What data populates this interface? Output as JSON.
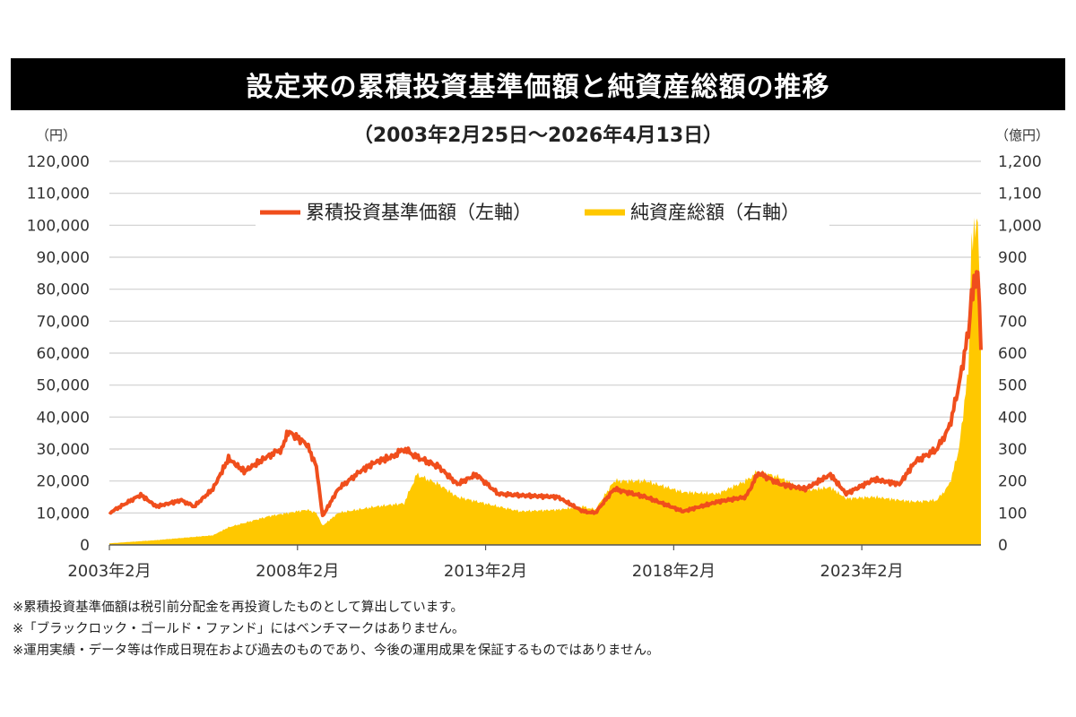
{
  "chart_data": {
    "type": "line+area",
    "title": "設定来の累積投資基準価額と純資産総額の推移",
    "subtitle": "（2003年2月25日～2026年4月13日）",
    "y_left": {
      "unit": "（円）",
      "range": [
        0,
        120000
      ],
      "ticks": [
        "0",
        "10,000",
        "20,000",
        "30,000",
        "40,000",
        "50,000",
        "60,000",
        "70,000",
        "80,000",
        "90,000",
        "100,000",
        "110,000",
        "120,000"
      ]
    },
    "y_right": {
      "unit": "（億円）",
      "range": [
        0,
        1200
      ],
      "ticks": [
        "0",
        "100",
        "200",
        "300",
        "400",
        "500",
        "600",
        "700",
        "800",
        "900",
        "1,000",
        "1,100",
        "1,200"
      ]
    },
    "x_range": [
      "2003-02",
      "2026-04"
    ],
    "x_ticks": [
      {
        "date": "2003-02",
        "label": "2003年2月"
      },
      {
        "date": "2008-02",
        "label": "2008年2月"
      },
      {
        "date": "2013-02",
        "label": "2013年2月"
      },
      {
        "date": "2018-02",
        "label": "2018年2月"
      },
      {
        "date": "2023-02",
        "label": "2023年2月"
      }
    ],
    "grid": true,
    "legend_placement": "top-center",
    "series": [
      {
        "name": "累積投資基準価額（左軸）",
        "type": "line",
        "axis": "left",
        "color": "#f04e1c",
        "points": [
          [
            "2003-02",
            10000
          ],
          [
            "2003-12",
            15700
          ],
          [
            "2004-05",
            12000
          ],
          [
            "2005-01",
            14000
          ],
          [
            "2005-05",
            12000
          ],
          [
            "2005-11",
            17500
          ],
          [
            "2006-04",
            27000
          ],
          [
            "2006-09",
            23000
          ],
          [
            "2007-05",
            28000
          ],
          [
            "2007-09",
            30000
          ],
          [
            "2007-11",
            35500
          ],
          [
            "2008-05",
            31500
          ],
          [
            "2008-08",
            24500
          ],
          [
            "2008-10",
            9000
          ],
          [
            "2009-03",
            17500
          ],
          [
            "2009-10",
            23000
          ],
          [
            "2010-03",
            26000
          ],
          [
            "2010-08",
            27500
          ],
          [
            "2010-12",
            30000
          ],
          [
            "2011-04",
            27500
          ],
          [
            "2011-11",
            24500
          ],
          [
            "2012-05",
            19000
          ],
          [
            "2012-11",
            22000
          ],
          [
            "2013-06",
            16000
          ],
          [
            "2014-01",
            15500
          ],
          [
            "2015-01",
            15000
          ],
          [
            "2015-09",
            10500
          ],
          [
            "2016-01",
            10000
          ],
          [
            "2016-07",
            17500
          ],
          [
            "2017-05",
            15000
          ],
          [
            "2018-05",
            10500
          ],
          [
            "2019-04",
            13500
          ],
          [
            "2020-01",
            15000
          ],
          [
            "2020-05",
            22500
          ],
          [
            "2020-12",
            19000
          ],
          [
            "2021-08",
            17500
          ],
          [
            "2022-04",
            22000
          ],
          [
            "2022-09",
            16000
          ],
          [
            "2023-06",
            20500
          ],
          [
            "2024-02",
            19000
          ],
          [
            "2024-07",
            26000
          ],
          [
            "2025-02",
            30000
          ],
          [
            "2025-06",
            37000
          ],
          [
            "2025-09",
            50000
          ],
          [
            "2025-12",
            66700
          ],
          [
            "2026-01",
            78000
          ],
          [
            "2026-03",
            86000
          ],
          [
            "2026-04",
            61000
          ]
        ]
      },
      {
        "name": "純資産総額（右軸）",
        "type": "area",
        "axis": "right",
        "color": "#ffc800",
        "points": [
          [
            "2003-02",
            5
          ],
          [
            "2004-05",
            15
          ],
          [
            "2005-11",
            30
          ],
          [
            "2006-04",
            55
          ],
          [
            "2007-05",
            90
          ],
          [
            "2007-11",
            100
          ],
          [
            "2008-05",
            110
          ],
          [
            "2008-08",
            100
          ],
          [
            "2008-10",
            60
          ],
          [
            "2009-03",
            100
          ],
          [
            "2010-03",
            120
          ],
          [
            "2010-12",
            130
          ],
          [
            "2011-04",
            220
          ],
          [
            "2011-11",
            190
          ],
          [
            "2012-05",
            150
          ],
          [
            "2013-06",
            120
          ],
          [
            "2014-01",
            105
          ],
          [
            "2015-01",
            110
          ],
          [
            "2015-09",
            120
          ],
          [
            "2016-01",
            110
          ],
          [
            "2016-07",
            200
          ],
          [
            "2017-05",
            200
          ],
          [
            "2018-05",
            165
          ],
          [
            "2019-04",
            160
          ],
          [
            "2020-01",
            200
          ],
          [
            "2020-05",
            230
          ],
          [
            "2020-12",
            210
          ],
          [
            "2021-08",
            170
          ],
          [
            "2022-04",
            180
          ],
          [
            "2022-09",
            145
          ],
          [
            "2023-06",
            150
          ],
          [
            "2024-02",
            140
          ],
          [
            "2024-07",
            135
          ],
          [
            "2025-02",
            140
          ],
          [
            "2025-06",
            190
          ],
          [
            "2025-09",
            300
          ],
          [
            "2025-12",
            550
          ],
          [
            "2026-01",
            950
          ],
          [
            "2026-03",
            1020
          ],
          [
            "2026-04",
            610
          ]
        ]
      }
    ]
  },
  "notes": [
    "※累積投資基準価額は税引前分配金を再投資したものとして算出しています。",
    "※「ブラックロック・ゴールド・ファンド」にはベンチマークはありません。",
    "※運用実績・データ等は作成日現在および過去のものであり、今後の運用成果を保証するものではありません。"
  ]
}
